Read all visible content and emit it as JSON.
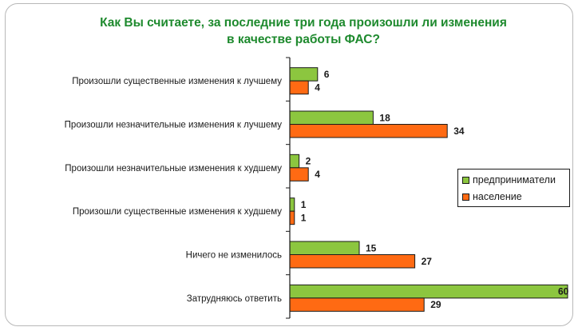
{
  "chart_data": {
    "type": "bar",
    "orientation": "horizontal",
    "title": [
      "Как Вы считаете, за последние три года произошли ли изменения",
      "в качестве работы ФАС?"
    ],
    "categories": [
      "Произошли существенные изменения к лучшему",
      "Произошли незначительные изменения к лучшему",
      "Произошли незначительные изменения к худшему",
      "Произошли существенные изменения к худшему",
      "Ничего не изменилось",
      "Затрудняюсь ответить"
    ],
    "series": [
      {
        "name": "предприниматели",
        "color": "#8cc63f",
        "values": [
          6,
          18,
          2,
          1,
          15,
          60
        ]
      },
      {
        "name": "население",
        "color": "#ff6a13",
        "values": [
          4,
          34,
          4,
          1,
          27,
          29
        ]
      }
    ],
    "xlim": [
      0,
      60
    ],
    "grid": false,
    "legend": "right"
  }
}
